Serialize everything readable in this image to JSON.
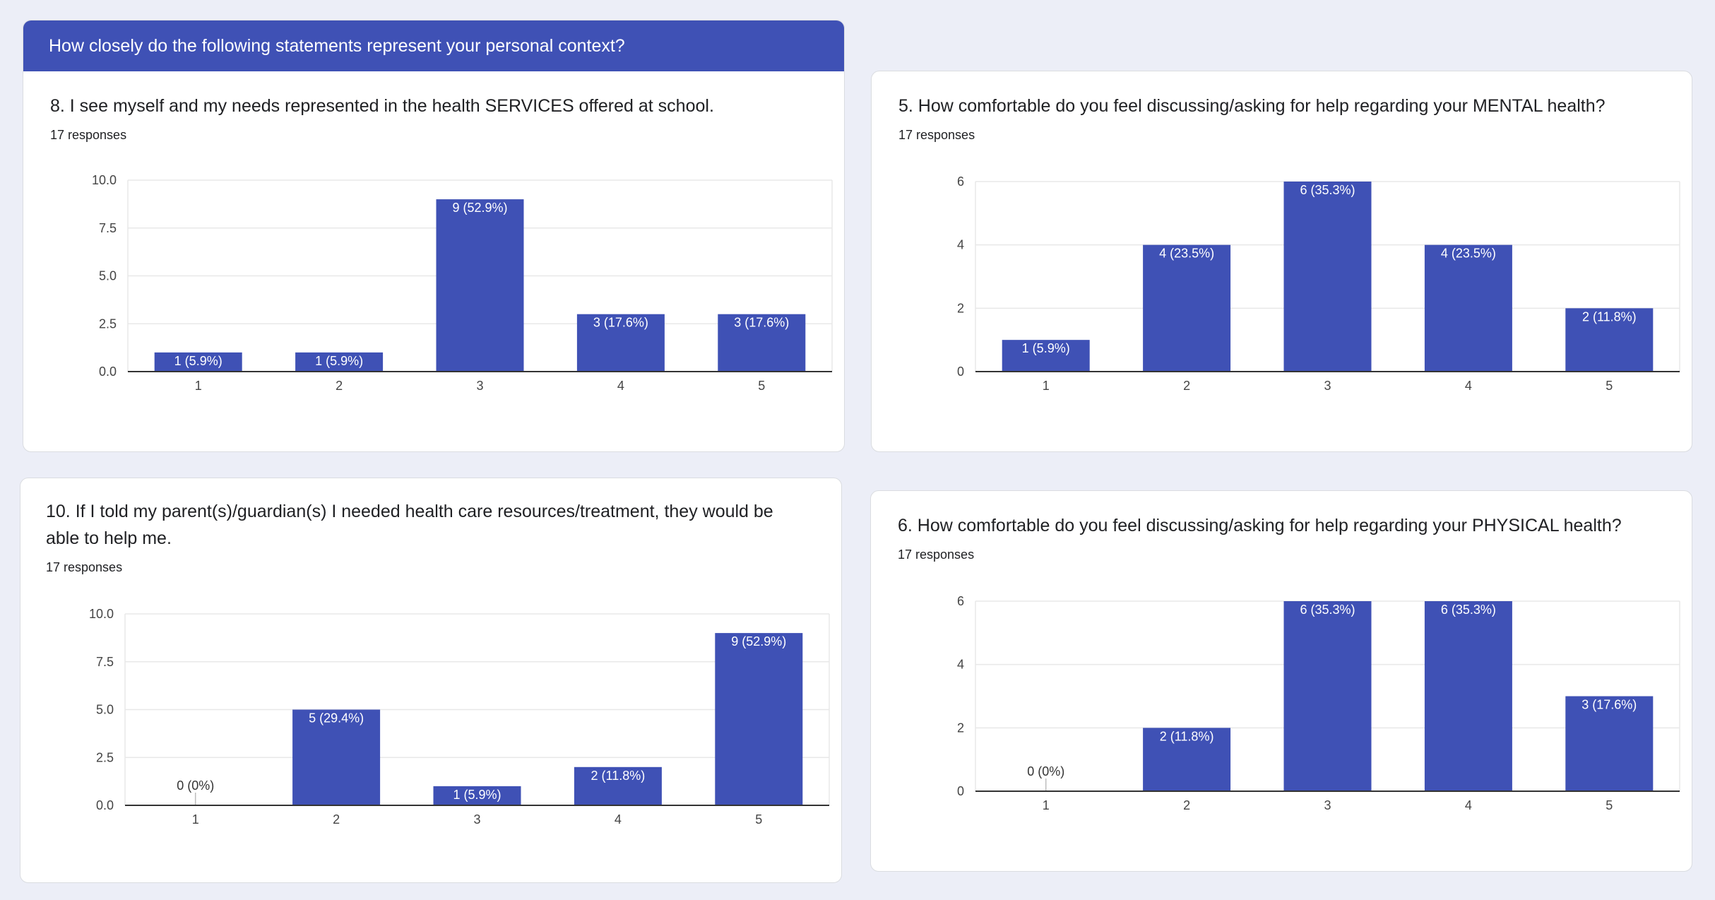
{
  "section_header": "How closely do the following statements represent your personal context?",
  "questions": [
    {
      "title": "8. I see myself and my needs represented in the health SERVICES offered at school.",
      "responses": "17 responses"
    },
    {
      "title": "5. How comfortable do you feel discussing/asking for help regarding your MENTAL health?",
      "responses": "17 responses"
    },
    {
      "title": "10. If I told my parent(s)/guardian(s) I needed health care resources/treatment, they would be able to help me.",
      "responses": "17 responses"
    },
    {
      "title": "6. How comfortable do you feel discussing/asking for help regarding your PHYSICAL health?",
      "responses": "17 responses"
    }
  ],
  "chart_data": [
    {
      "type": "bar",
      "categories": [
        "1",
        "2",
        "3",
        "4",
        "5"
      ],
      "values": [
        1,
        1,
        9,
        3,
        3
      ],
      "data_labels": [
        "1 (5.9%)",
        "1 (5.9%)",
        "9 (52.9%)",
        "3 (17.6%)",
        "3 (17.6%)"
      ],
      "yticks": [
        "0.0",
        "2.5",
        "5.0",
        "7.5",
        "10.0"
      ],
      "ylim": [
        0,
        10
      ],
      "xlabel": "",
      "ylabel": "",
      "color": "#3f51b5"
    },
    {
      "type": "bar",
      "categories": [
        "1",
        "2",
        "3",
        "4",
        "5"
      ],
      "values": [
        1,
        4,
        6,
        4,
        2
      ],
      "data_labels": [
        "1 (5.9%)",
        "4 (23.5%)",
        "6 (35.3%)",
        "4 (23.5%)",
        "2 (11.8%)"
      ],
      "yticks": [
        "0",
        "2",
        "4",
        "6"
      ],
      "ylim": [
        0,
        6
      ],
      "xlabel": "",
      "ylabel": "",
      "color": "#3f51b5"
    },
    {
      "type": "bar",
      "categories": [
        "1",
        "2",
        "3",
        "4",
        "5"
      ],
      "values": [
        0,
        5,
        1,
        2,
        9
      ],
      "data_labels": [
        "0 (0%)",
        "5 (29.4%)",
        "1 (5.9%)",
        "2 (11.8%)",
        "9 (52.9%)"
      ],
      "yticks": [
        "0.0",
        "2.5",
        "5.0",
        "7.5",
        "10.0"
      ],
      "ylim": [
        0,
        10
      ],
      "xlabel": "",
      "ylabel": "",
      "color": "#3f51b5"
    },
    {
      "type": "bar",
      "categories": [
        "1",
        "2",
        "3",
        "4",
        "5"
      ],
      "values": [
        0,
        2,
        6,
        6,
        3
      ],
      "data_labels": [
        "0 (0%)",
        "2 (11.8%)",
        "6 (35.3%)",
        "6 (35.3%)",
        "3 (17.6%)"
      ],
      "yticks": [
        "0",
        "2",
        "4",
        "6"
      ],
      "ylim": [
        0,
        6
      ],
      "xlabel": "",
      "ylabel": "",
      "color": "#3f51b5"
    }
  ]
}
